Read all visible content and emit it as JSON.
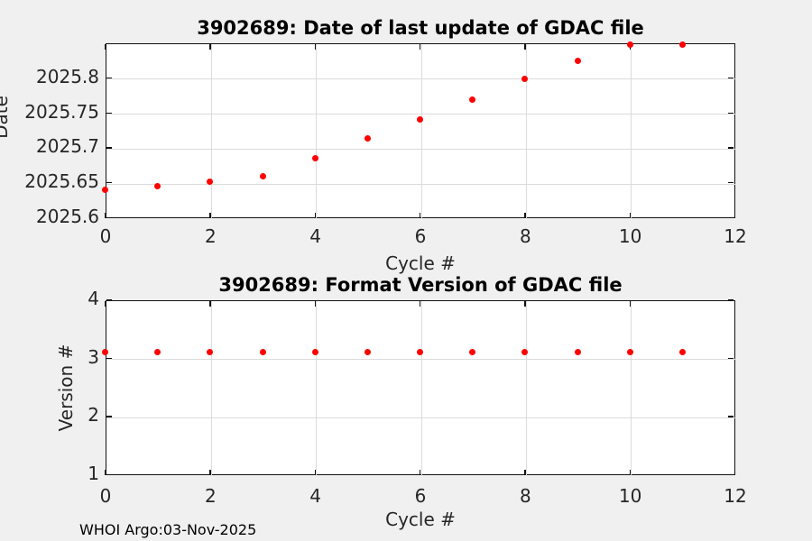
{
  "figure": {
    "footer": "WHOI Argo:03-Nov-2025",
    "background": "#f0f0f0",
    "plot_background": "#ffffff",
    "grid_color": "#dcdcdc",
    "axis_color": "#111111",
    "marker_color": "#ff0000"
  },
  "chart_data": [
    {
      "type": "scatter",
      "title": "3902689: Date of last update of GDAC file",
      "xlabel": "Cycle #",
      "ylabel": "Date",
      "x": [
        0,
        1,
        2,
        3,
        4,
        5,
        6,
        7,
        8,
        9,
        10,
        11
      ],
      "y": [
        2025.64,
        2025.645,
        2025.652,
        2025.659,
        2025.685,
        2025.713,
        2025.74,
        2025.769,
        2025.798,
        2025.824,
        2025.848,
        2025.848
      ],
      "xlim": [
        0,
        12
      ],
      "ylim": [
        2025.6,
        2025.85
      ],
      "xticks": [
        0,
        2,
        4,
        6,
        8,
        10,
        12
      ],
      "xtick_labels": [
        "0",
        "2",
        "4",
        "6",
        "8",
        "10",
        "12"
      ],
      "yticks": [
        2025.6,
        2025.65,
        2025.7,
        2025.75,
        2025.8
      ],
      "ytick_labels": [
        "2025.6",
        "2025.65",
        "2025.7",
        "2025.75",
        "2025.8"
      ],
      "grid": true,
      "legend": null,
      "marker_color": "#ff0000"
    },
    {
      "type": "scatter",
      "title": "3902689: Format Version of GDAC file",
      "xlabel": "Cycle #",
      "ylabel": "Version #",
      "x": [
        0,
        1,
        2,
        3,
        4,
        5,
        6,
        7,
        8,
        9,
        10,
        11
      ],
      "y": [
        3.1,
        3.1,
        3.1,
        3.1,
        3.1,
        3.1,
        3.1,
        3.1,
        3.1,
        3.1,
        3.1,
        3.1
      ],
      "xlim": [
        0,
        12
      ],
      "ylim": [
        1,
        4
      ],
      "xticks": [
        0,
        2,
        4,
        6,
        8,
        10,
        12
      ],
      "xtick_labels": [
        "0",
        "2",
        "4",
        "6",
        "8",
        "10",
        "12"
      ],
      "yticks": [
        1,
        2,
        3,
        4
      ],
      "ytick_labels": [
        "1",
        "2",
        "3",
        "4"
      ],
      "grid": true,
      "legend": null,
      "marker_color": "#ff0000"
    }
  ]
}
